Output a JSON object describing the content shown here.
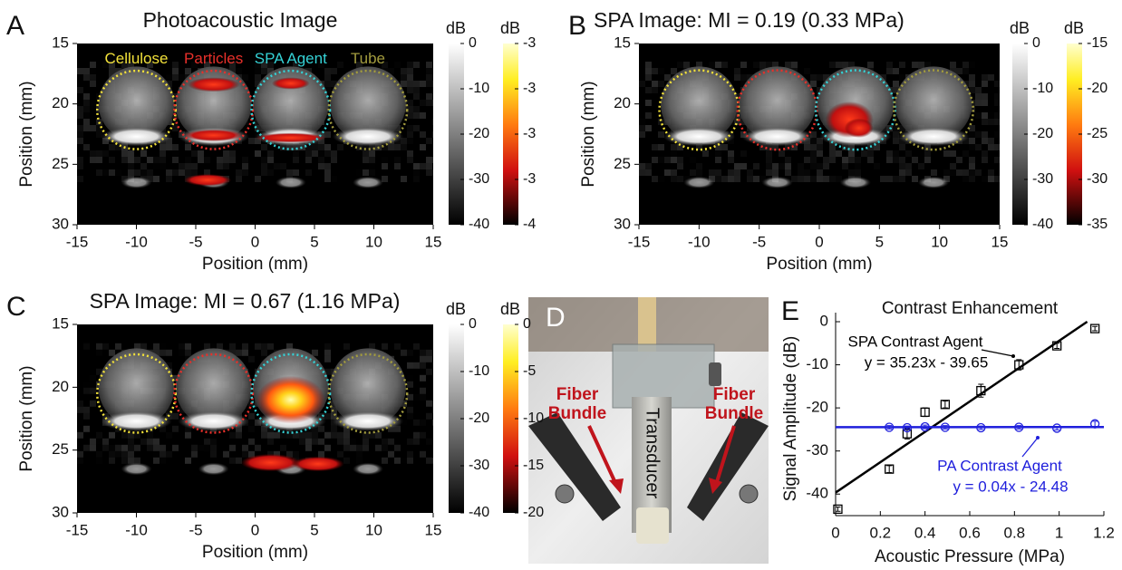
{
  "chart_data": [
    {
      "type": "image",
      "letter": "A",
      "title": "Photoacoustic Image",
      "xlabel": "Position (mm)",
      "ylabel": "Position (mm)",
      "xlim": [
        -15,
        15
      ],
      "xticks": [
        -15,
        -10,
        -5,
        0,
        5,
        10,
        15
      ],
      "ylim": [
        15,
        30
      ],
      "yticks": [
        15,
        20,
        25,
        30
      ],
      "y_reversed": true,
      "labels": [
        {
          "name": "Cellulose",
          "color": "#f2e13a"
        },
        {
          "name": "Particles",
          "color": "#e8302a"
        },
        {
          "name": "SPA Agent",
          "color": "#35d2d6"
        },
        {
          "name": "Tube",
          "color": "#a39c3e"
        }
      ],
      "colorbars": [
        {
          "title": "dB",
          "colormap": "gray",
          "lim": [
            -40,
            0
          ],
          "ticks": [
            0,
            -10,
            -20,
            -30,
            -40
          ]
        },
        {
          "title": "dB",
          "colormap": "hot",
          "lim": [
            -3.5,
            -3
          ],
          "ticks": [
            -3,
            {
              "value": -3.125,
              "label": "-3"
            },
            {
              "value": -3.25,
              "label": "-3"
            },
            {
              "value": -3.375,
              "label": "-3"
            },
            {
              "value": -3.5,
              "label": "-4"
            }
          ]
        }
      ]
    },
    {
      "type": "image",
      "letter": "B",
      "title": "SPA Image: MI = 0.19 (0.33 MPa)",
      "xlabel": "Position (mm)",
      "ylabel": "Position (mm)",
      "xlim": [
        -15,
        15
      ],
      "xticks": [
        -15,
        -10,
        -5,
        0,
        5,
        10,
        15
      ],
      "ylim": [
        15,
        30
      ],
      "yticks": [
        15,
        20,
        25,
        30
      ],
      "y_reversed": true,
      "colorbars": [
        {
          "title": "dB",
          "colormap": "gray",
          "lim": [
            -40,
            0
          ],
          "ticks": [
            0,
            -10,
            -20,
            -30,
            -40
          ]
        },
        {
          "title": "dB",
          "colormap": "hot",
          "lim": [
            -35,
            -15
          ],
          "ticks": [
            -15,
            -20,
            -25,
            -30,
            -35
          ]
        }
      ]
    },
    {
      "type": "image",
      "letter": "C",
      "title": "SPA Image: MI = 0.67 (1.16 MPa)",
      "xlabel": "Position (mm)",
      "ylabel": "Position (mm)",
      "xlim": [
        -15,
        15
      ],
      "xticks": [
        -15,
        -10,
        -5,
        0,
        5,
        10,
        15
      ],
      "ylim": [
        15,
        30
      ],
      "yticks": [
        15,
        20,
        25,
        30
      ],
      "y_reversed": true,
      "colorbars": [
        {
          "title": "dB",
          "colormap": "gray",
          "lim": [
            -40,
            0
          ],
          "ticks": [
            0,
            -10,
            -20,
            -30,
            -40
          ]
        },
        {
          "title": "dB",
          "colormap": "hot",
          "lim": [
            -20,
            0
          ],
          "ticks": [
            0,
            -5,
            -10,
            -15,
            -20
          ]
        }
      ]
    },
    {
      "type": "photo",
      "letter": "D",
      "labels": [
        "Fiber Bundle",
        "Fiber Bundle",
        "Transducer"
      ]
    },
    {
      "type": "scatter",
      "letter": "E",
      "title": "Contrast Enhancement",
      "xlabel": "Acoustic Pressure (MPa)",
      "ylabel": "Signal Amplitude (dB)",
      "xlim": [
        0,
        1.2
      ],
      "xticks": [
        0,
        0.2,
        0.4,
        0.6,
        0.8,
        1,
        1.2
      ],
      "ylim": [
        -45,
        0
      ],
      "yticks": [
        0,
        -10,
        -20,
        -30,
        -40
      ],
      "series": [
        {
          "name": "SPA Contrast Agent",
          "color": "#000000",
          "marker": "square",
          "x": [
            0.01,
            0.24,
            0.32,
            0.4,
            0.49,
            0.65,
            0.82,
            0.99,
            1.16
          ],
          "values": [
            -43.5,
            -34.2,
            -26,
            -21,
            -19.2,
            -16,
            -10,
            -5.6,
            -1.6
          ],
          "errors": [
            0.5,
            0.8,
            1.2,
            1,
            0.8,
            1.5,
            1.2,
            0.6,
            0.5
          ],
          "fit": {
            "slope": 35.23,
            "intercept": -39.65,
            "label": "y = 35.23x - 39.65"
          }
        },
        {
          "name": "PA Contrast Agent",
          "color": "#1f1fdc",
          "marker": "circle",
          "x": [
            0.24,
            0.32,
            0.4,
            0.49,
            0.65,
            0.82,
            0.99,
            1.16
          ],
          "values": [
            -24.5,
            -24.6,
            -24.4,
            -24.5,
            -24.6,
            -24.5,
            -24.7,
            -23.7
          ],
          "errors": [
            0.4,
            0.4,
            0.4,
            0.4,
            0.4,
            0.4,
            0.4,
            0.6
          ],
          "fit": {
            "slope": 0.04,
            "intercept": -24.48,
            "label": "y = 0.04x - 24.48"
          }
        }
      ]
    }
  ]
}
